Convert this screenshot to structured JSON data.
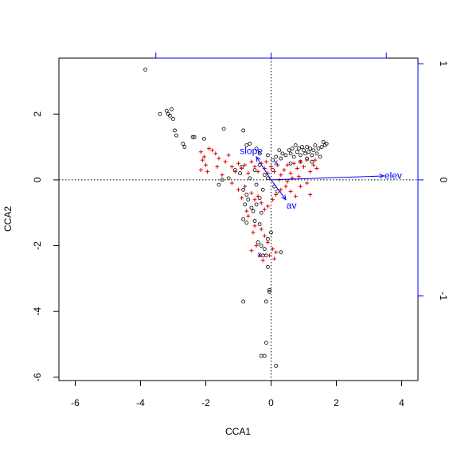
{
  "chart_data": {
    "type": "scatter",
    "title": "",
    "xlabel": "CCA1",
    "ylabel": "CCA2",
    "xlim": [
      -6.5,
      4.5
    ],
    "ylim": [
      -6.1,
      3.7
    ],
    "x_ticks": [
      -6,
      -4,
      -2,
      0,
      2,
      4
    ],
    "y_ticks": [
      -6,
      -4,
      -2,
      0,
      2
    ],
    "x_tick_labels": [
      "-6",
      "-4",
      "-2",
      "0",
      "2",
      "4"
    ],
    "y_tick_labels": [
      "-6",
      "-4",
      "-2",
      "0",
      "2"
    ],
    "secondary_axis": {
      "color": "#0000ff",
      "scale_per_unit": 3.53,
      "top_ticks": [
        -1,
        0,
        1
      ],
      "right_ticks": [
        -1,
        0,
        1
      ],
      "right_tick_labels": [
        "-1",
        "0",
        "1"
      ]
    },
    "reference_lines": {
      "x": 0,
      "y": 0,
      "style": "dotted"
    },
    "grid": false,
    "legend": "none",
    "series": [
      {
        "name": "",
        "marker": "circle",
        "color": "#000000",
        "points": [
          [
            -3.85,
            3.35
          ],
          [
            -3.2,
            2.1
          ],
          [
            -3.15,
            2.0
          ],
          [
            -3.1,
            1.95
          ],
          [
            -3.0,
            1.85
          ],
          [
            -3.05,
            2.15
          ],
          [
            -3.4,
            2.0
          ],
          [
            -2.95,
            1.5
          ],
          [
            -2.9,
            1.35
          ],
          [
            -2.7,
            1.1
          ],
          [
            -2.65,
            1.0
          ],
          [
            -2.4,
            1.3
          ],
          [
            -2.35,
            1.3
          ],
          [
            -2.05,
            1.25
          ],
          [
            -1.45,
            1.55
          ],
          [
            -0.85,
            1.5
          ],
          [
            -0.75,
            1.05
          ],
          [
            -0.65,
            1.1
          ],
          [
            -0.45,
            0.95
          ],
          [
            -0.35,
            0.8
          ],
          [
            -0.1,
            0.75
          ],
          [
            0.05,
            0.6
          ],
          [
            0.15,
            0.7
          ],
          [
            0.25,
            0.9
          ],
          [
            0.3,
            0.65
          ],
          [
            0.35,
            0.8
          ],
          [
            0.45,
            0.75
          ],
          [
            0.55,
            0.9
          ],
          [
            0.6,
            0.8
          ],
          [
            0.65,
            0.95
          ],
          [
            0.7,
            0.7
          ],
          [
            0.75,
            1.05
          ],
          [
            0.8,
            0.85
          ],
          [
            0.85,
            0.95
          ],
          [
            0.9,
            0.75
          ],
          [
            0.95,
            1.0
          ],
          [
            1.0,
            0.9
          ],
          [
            1.05,
            0.8
          ],
          [
            1.1,
            1.0
          ],
          [
            1.15,
            0.85
          ],
          [
            1.2,
            0.95
          ],
          [
            1.25,
            0.75
          ],
          [
            1.3,
            0.9
          ],
          [
            1.35,
            1.05
          ],
          [
            1.4,
            0.8
          ],
          [
            1.45,
            0.95
          ],
          [
            1.5,
            0.7
          ],
          [
            1.55,
            1.0
          ],
          [
            1.6,
            1.15
          ],
          [
            1.65,
            1.05
          ],
          [
            1.7,
            1.1
          ],
          [
            1.1,
            0.65
          ],
          [
            0.9,
            0.55
          ],
          [
            1.25,
            0.55
          ],
          [
            0.6,
            0.5
          ],
          [
            -1.3,
            0.05
          ],
          [
            -1.5,
            0.0
          ],
          [
            -1.6,
            -0.15
          ],
          [
            -1.1,
            0.3
          ],
          [
            -0.9,
            0.4
          ],
          [
            -0.95,
            0.2
          ],
          [
            -0.85,
            -0.3
          ],
          [
            -0.75,
            -0.45
          ],
          [
            -0.7,
            -0.6
          ],
          [
            -0.8,
            -0.75
          ],
          [
            -0.6,
            -0.85
          ],
          [
            -0.55,
            -0.95
          ],
          [
            -0.45,
            -0.75
          ],
          [
            -0.35,
            -0.55
          ],
          [
            -0.3,
            -1.0
          ],
          [
            -0.25,
            -0.3
          ],
          [
            -0.45,
            -0.15
          ],
          [
            -0.65,
            0.05
          ],
          [
            -0.5,
            0.3
          ],
          [
            -0.35,
            0.45
          ],
          [
            -0.2,
            0.15
          ],
          [
            -0.1,
            0.05
          ],
          [
            0.05,
            0.3
          ],
          [
            0.1,
            -0.2
          ],
          [
            0.2,
            -0.35
          ],
          [
            -0.85,
            -1.2
          ],
          [
            -0.75,
            -1.3
          ],
          [
            -0.5,
            -1.25
          ],
          [
            -0.35,
            -1.35
          ],
          [
            -0.4,
            -1.9
          ],
          [
            -0.3,
            -2.0
          ],
          [
            -0.2,
            -2.1
          ],
          [
            -0.1,
            -1.8
          ],
          [
            0.0,
            -1.6
          ],
          [
            -0.15,
            -2.3
          ],
          [
            -0.25,
            -2.3
          ],
          [
            0.3,
            -2.2
          ],
          [
            -0.1,
            -2.65
          ],
          [
            -0.05,
            -3.4
          ],
          [
            -0.85,
            -3.7
          ],
          [
            -0.15,
            -3.7
          ],
          [
            -0.15,
            -4.95
          ],
          [
            -0.2,
            -5.35
          ],
          [
            -0.3,
            -5.35
          ],
          [
            0.15,
            -5.65
          ],
          [
            -0.05,
            -3.35
          ]
        ]
      },
      {
        "name": "",
        "marker": "plus",
        "color": "#dd0000",
        "points": [
          [
            -2.15,
            0.85
          ],
          [
            -2.1,
            0.6
          ],
          [
            -2.05,
            0.7
          ],
          [
            -2.0,
            0.45
          ],
          [
            -1.9,
            0.95
          ],
          [
            -1.8,
            0.9
          ],
          [
            -1.7,
            0.8
          ],
          [
            -1.6,
            0.65
          ],
          [
            -1.4,
            0.55
          ],
          [
            -1.3,
            0.75
          ],
          [
            -1.2,
            0.4
          ],
          [
            -1.1,
            0.25
          ],
          [
            -1.0,
            0.5
          ],
          [
            -0.9,
            0.35
          ],
          [
            -0.8,
            0.45
          ],
          [
            -0.7,
            0.2
          ],
          [
            -0.6,
            0.55
          ],
          [
            -0.5,
            0.4
          ],
          [
            -0.4,
            0.25
          ],
          [
            -0.3,
            0.5
          ],
          [
            -0.2,
            0.35
          ],
          [
            -0.1,
            0.2
          ],
          [
            0.0,
            0.4
          ],
          [
            0.1,
            0.25
          ],
          [
            0.2,
            0.45
          ],
          [
            0.3,
            0.15
          ],
          [
            0.4,
            0.3
          ],
          [
            0.5,
            0.45
          ],
          [
            0.6,
            0.2
          ],
          [
            0.7,
            0.5
          ],
          [
            0.8,
            0.35
          ],
          [
            0.9,
            0.55
          ],
          [
            1.0,
            0.4
          ],
          [
            1.1,
            0.6
          ],
          [
            1.2,
            0.25
          ],
          [
            1.3,
            0.45
          ],
          [
            1.35,
            0.6
          ],
          [
            1.4,
            0.35
          ],
          [
            -1.2,
            -0.1
          ],
          [
            -1.0,
            -0.3
          ],
          [
            -0.8,
            -0.2
          ],
          [
            -0.6,
            -0.4
          ],
          [
            -0.5,
            -0.6
          ],
          [
            -0.4,
            -0.5
          ],
          [
            -0.3,
            -0.7
          ],
          [
            -0.2,
            -0.9
          ],
          [
            -0.1,
            -0.8
          ],
          [
            0.05,
            -0.6
          ],
          [
            0.15,
            -0.45
          ],
          [
            0.3,
            -0.3
          ],
          [
            0.45,
            -0.2
          ],
          [
            0.6,
            -0.35
          ],
          [
            0.75,
            -0.5
          ],
          [
            0.9,
            -0.2
          ],
          [
            1.1,
            -0.1
          ],
          [
            1.2,
            -0.45
          ],
          [
            -0.7,
            -1.1
          ],
          [
            -0.5,
            -1.4
          ],
          [
            -0.3,
            -1.5
          ],
          [
            -0.2,
            -1.7
          ],
          [
            -0.1,
            -1.9
          ],
          [
            0.05,
            -2.1
          ],
          [
            0.15,
            -2.2
          ],
          [
            -0.45,
            -2.0
          ],
          [
            -0.6,
            -2.15
          ],
          [
            -0.35,
            -2.3
          ],
          [
            -0.25,
            -2.45
          ],
          [
            -0.05,
            -2.3
          ],
          [
            0.1,
            -2.4
          ],
          [
            -0.55,
            -1.6
          ],
          [
            -0.75,
            -0.95
          ],
          [
            -0.9,
            -0.55
          ],
          [
            -1.5,
            0.15
          ],
          [
            -1.65,
            0.4
          ],
          [
            -1.95,
            0.25
          ],
          [
            -2.15,
            0.3
          ],
          [
            -0.15,
            0.55
          ],
          [
            0.25,
            0.0
          ],
          [
            0.5,
            -0.05
          ],
          [
            0.65,
            0.05
          ],
          [
            0.85,
            0.1
          ]
        ]
      }
    ],
    "biplot_arrows": [
      {
        "label": "elev",
        "x": 3.45,
        "y": 0.12
      },
      {
        "label": "slope",
        "x": -0.45,
        "y": 0.7
      },
      {
        "label": "av",
        "x": 0.45,
        "y": -0.6
      }
    ],
    "centroid_markers": [
      {
        "label": "x",
        "x": 0.15,
        "y": 0.55
      },
      {
        "label": "x",
        "x": -0.35,
        "y": -2.25
      }
    ],
    "colors": {
      "axis": "#000000",
      "biplot": "#0000ff",
      "points_circle": "#000000",
      "points_plus": "#dd0000"
    }
  }
}
